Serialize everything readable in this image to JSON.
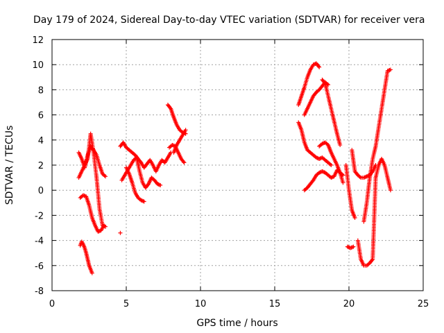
{
  "chart_data": {
    "type": "scatter",
    "title": "Day 179 of 2024, Sidereal Day-to-day VTEC variation (SDTVAR) for receiver vera",
    "xlabel": "GPS time / hours",
    "ylabel": "SDTVAR / TECUs",
    "xlim": [
      0,
      25
    ],
    "ylim": [
      -8,
      12
    ],
    "x_ticks": [
      "0",
      "5",
      "10",
      "15",
      "20",
      "25"
    ],
    "y_ticks": [
      "-8",
      "-6",
      "-4",
      "-2",
      "0",
      "2",
      "4",
      "6",
      "8",
      "10",
      "12"
    ],
    "grid": true,
    "marker": "+",
    "color": "#ff0000",
    "segments": [
      {
        "x": [
          1.8,
          2.0,
          2.2,
          2.4,
          2.6,
          2.8,
          3.0,
          3.2,
          3.4,
          3.6
        ],
        "y": [
          3.0,
          2.5,
          1.8,
          2.8,
          3.5,
          3.2,
          2.8,
          2.0,
          1.3,
          1.1
        ]
      },
      {
        "x": [
          1.8,
          2.0,
          2.2,
          2.4,
          2.6,
          2.8,
          3.0,
          3.2,
          3.4,
          3.6
        ],
        "y": [
          1.0,
          1.5,
          2.0,
          2.5,
          4.5,
          3.0,
          1.0,
          -1.5,
          -2.8,
          -2.9
        ]
      },
      {
        "x": [
          1.9,
          2.1,
          2.3,
          2.5,
          2.7,
          2.9,
          3.1,
          3.3,
          3.5
        ],
        "y": [
          -0.6,
          -0.4,
          -0.5,
          -1.2,
          -2.2,
          -2.8,
          -3.3,
          -3.2,
          -2.8
        ]
      },
      {
        "x": [
          1.9,
          2.0,
          2.1,
          2.2,
          2.3,
          2.4,
          2.5,
          2.6,
          2.7
        ],
        "y": [
          -4.4,
          -4.1,
          -4.3,
          -4.6,
          -5.0,
          -5.5,
          -6.0,
          -6.3,
          -6.6
        ]
      },
      {
        "x": [
          4.6,
          4.8,
          5.0,
          5.2,
          5.4,
          5.6,
          5.8,
          6.0,
          6.2,
          6.4,
          6.6,
          6.8,
          7.0,
          7.2,
          7.4,
          7.6,
          7.8,
          8.0
        ],
        "y": [
          3.5,
          3.8,
          3.4,
          3.2,
          3.0,
          2.8,
          2.5,
          2.2,
          1.8,
          2.1,
          2.4,
          2.0,
          1.5,
          2.0,
          2.4,
          2.2,
          2.6,
          3.0
        ]
      },
      {
        "x": [
          4.7,
          4.9,
          5.1,
          5.3,
          5.5,
          5.7,
          5.9,
          6.1,
          6.3,
          6.5,
          6.7,
          6.9,
          7.1,
          7.3
        ],
        "y": [
          0.8,
          1.2,
          1.6,
          2.0,
          2.4,
          2.6,
          1.5,
          0.6,
          0.2,
          0.5,
          1.0,
          0.8,
          0.5,
          0.4
        ]
      },
      {
        "x": [
          5.0,
          5.2,
          5.4,
          5.6,
          5.8,
          6.0,
          6.2
        ],
        "y": [
          1.8,
          1.3,
          0.6,
          -0.2,
          -0.6,
          -0.8,
          -0.9
        ]
      },
      {
        "x": [
          4.6
        ],
        "y": [
          -3.4
        ]
      },
      {
        "x": [
          7.8,
          8.0,
          8.2,
          8.4,
          8.6,
          8.8,
          9.0
        ],
        "y": [
          6.8,
          6.5,
          5.8,
          5.2,
          4.8,
          4.6,
          4.5
        ]
      },
      {
        "x": [
          7.9,
          8.1,
          8.3,
          8.5,
          8.7,
          8.9
        ],
        "y": [
          3.4,
          3.6,
          3.5,
          3.0,
          2.5,
          2.2
        ]
      },
      {
        "x": [
          8.2,
          8.4,
          8.6,
          8.8,
          9.0
        ],
        "y": [
          3.0,
          3.6,
          4.0,
          4.4,
          4.8
        ]
      },
      {
        "x": [
          16.6,
          16.8,
          17.0,
          17.2,
          17.4,
          17.6,
          17.8,
          18.0
        ],
        "y": [
          6.8,
          7.5,
          8.2,
          9.0,
          9.6,
          10.0,
          10.1,
          9.8
        ]
      },
      {
        "x": [
          16.6,
          16.8,
          17.0,
          17.2,
          17.4,
          17.6,
          17.8,
          18.0,
          18.2,
          18.4,
          18.6,
          18.8
        ],
        "y": [
          5.4,
          4.8,
          3.8,
          3.2,
          3.0,
          2.8,
          2.6,
          2.5,
          2.6,
          2.4,
          2.2,
          2.0
        ]
      },
      {
        "x": [
          17.0,
          17.2,
          17.4,
          17.6,
          17.8,
          18.0,
          18.2,
          18.4,
          18.6
        ],
        "y": [
          6.0,
          6.5,
          7.0,
          7.5,
          7.8,
          8.0,
          8.3,
          8.6,
          8.4
        ]
      },
      {
        "x": [
          17.0,
          17.2,
          17.4,
          17.6,
          17.8,
          18.0,
          18.2,
          18.4,
          18.6,
          18.8,
          19.0,
          19.2,
          19.4,
          19.6
        ],
        "y": [
          0.0,
          0.2,
          0.5,
          0.8,
          1.2,
          1.4,
          1.5,
          1.4,
          1.2,
          1.0,
          1.1,
          1.6,
          1.4,
          1.2
        ]
      },
      {
        "x": [
          18.0,
          18.2,
          18.4,
          18.6,
          18.8,
          19.0,
          19.2,
          19.4,
          19.6
        ],
        "y": [
          3.5,
          3.7,
          3.8,
          3.6,
          3.0,
          2.5,
          2.0,
          1.4,
          0.6
        ]
      },
      {
        "x": [
          18.2,
          18.4,
          18.6,
          18.8,
          19.0,
          19.2,
          19.4
        ],
        "y": [
          8.8,
          8.5,
          7.5,
          6.5,
          5.5,
          4.5,
          3.6
        ]
      },
      {
        "x": [
          19.8,
          20.0,
          20.2,
          20.4
        ],
        "y": [
          2.0,
          0.0,
          -1.6,
          -2.2
        ]
      },
      {
        "x": [
          19.9,
          20.1,
          20.3
        ],
        "y": [
          -4.5,
          -4.6,
          -4.5
        ]
      },
      {
        "x": [
          20.2,
          20.4,
          20.6,
          20.8,
          21.0,
          21.2,
          21.4,
          21.6,
          21.8
        ],
        "y": [
          3.2,
          1.5,
          1.2,
          1.0,
          1.0,
          1.1,
          1.2,
          1.5,
          2.0
        ]
      },
      {
        "x": [
          20.6,
          20.8,
          21.0,
          21.2,
          21.4,
          21.6,
          21.8,
          22.0,
          22.2,
          22.4,
          22.6,
          22.8
        ],
        "y": [
          -4.0,
          -5.5,
          -6.0,
          -6.0,
          -5.8,
          -5.5,
          1.0,
          2.0,
          2.5,
          2.0,
          1.0,
          0.0
        ]
      },
      {
        "x": [
          21.0,
          21.2,
          21.4,
          21.6,
          21.8,
          22.0,
          22.2,
          22.4,
          22.6,
          22.8
        ],
        "y": [
          -2.5,
          -1.0,
          1.0,
          2.5,
          3.5,
          5.0,
          6.5,
          8.0,
          9.5,
          9.6
        ]
      }
    ]
  }
}
